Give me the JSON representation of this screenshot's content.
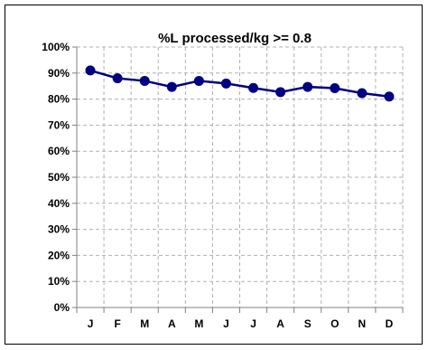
{
  "chart_data": {
    "type": "line",
    "title": "%L processed/kg >= 0.8",
    "xlabel": "",
    "ylabel": "",
    "categories": [
      "J",
      "F",
      "M",
      "A",
      "M",
      "J",
      "J",
      "A",
      "S",
      "O",
      "N",
      "D"
    ],
    "series": [
      {
        "values": [
          0.91,
          0.88,
          0.87,
          0.847,
          0.87,
          0.86,
          0.843,
          0.827,
          0.847,
          0.842,
          0.823,
          0.81
        ]
      }
    ],
    "ylim": [
      0,
      1
    ],
    "yticks": [
      "0%",
      "10%",
      "20%",
      "30%",
      "40%",
      "50%",
      "60%",
      "70%",
      "80%",
      "90%",
      "100%"
    ],
    "grid": true,
    "legend": "none",
    "colors": {
      "series": "#000080",
      "grid": "#b0b0b0",
      "axis": "#808080"
    }
  }
}
